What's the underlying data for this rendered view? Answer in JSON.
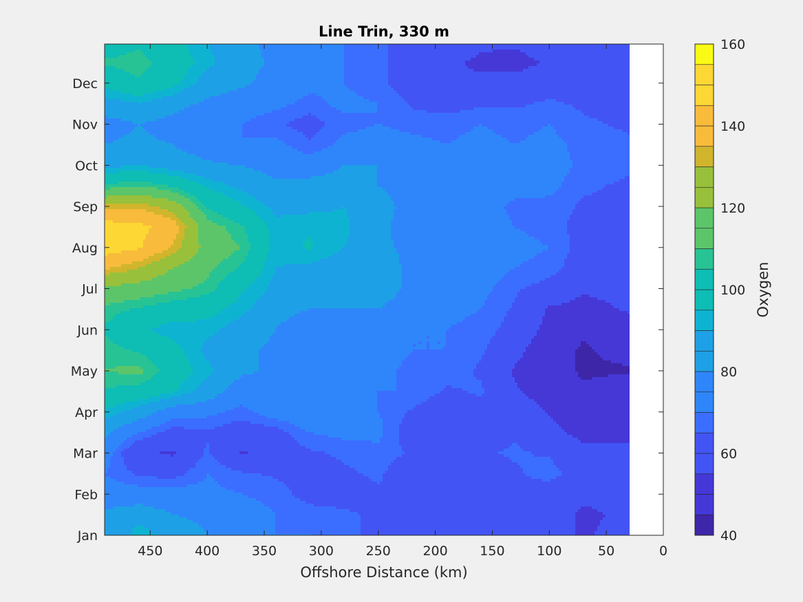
{
  "chart_data": {
    "type": "heatmap",
    "title": "Line Trin, 330 m",
    "xlabel": "Offshore Distance (km)",
    "ylabel": "",
    "xlim": [
      490,
      0
    ],
    "x_reversed": true,
    "x_ticks": [
      450,
      400,
      350,
      300,
      250,
      200,
      150,
      100,
      50,
      0
    ],
    "y_ticks": [
      "Jan",
      "Feb",
      "Mar",
      "Apr",
      "May",
      "Jun",
      "Jul",
      "Aug",
      "Sep",
      "Oct",
      "Nov",
      "Dec"
    ],
    "y_tick_values": [
      1,
      2,
      3,
      4,
      5,
      6,
      7,
      8,
      9,
      10,
      11,
      12
    ],
    "ylim": [
      1,
      12.95
    ],
    "x_data_max": 30,
    "colorbar": {
      "label": "Oxygen",
      "range": [
        40,
        160
      ],
      "ticks": [
        40,
        60,
        80,
        100,
        120,
        140,
        160
      ],
      "levels": [
        40,
        45,
        50,
        55,
        60,
        65,
        70,
        75,
        80,
        85,
        90,
        95,
        100,
        105,
        110,
        115,
        120,
        125,
        130,
        135,
        140,
        145,
        150,
        155,
        160
      ],
      "colormap": [
        "#3e26a8",
        "#4538d7",
        "#4354f5",
        "#3b6eff",
        "#2f86fa",
        "#1ea0e6",
        "#0fb3d2",
        "#0ebdb4",
        "#28c394",
        "#5cc56a",
        "#98c03b",
        "#d0b52d",
        "#f8bb3b",
        "#fdd734",
        "#f9fb15"
      ]
    },
    "x_grid": [
      490,
      460,
      430,
      400,
      370,
      340,
      310,
      280,
      250,
      220,
      190,
      160,
      130,
      100,
      70,
      30
    ],
    "y_grid": [
      1,
      1.5,
      2,
      2.5,
      3,
      3.5,
      4,
      4.5,
      5,
      5.5,
      6,
      6.5,
      7,
      7.5,
      8,
      8.5,
      9,
      9.5,
      10,
      10.5,
      11,
      11.5,
      12,
      12.5,
      12.95
    ],
    "z": [
      [
        80,
        94,
        86,
        80,
        76,
        70,
        70,
        66,
        64,
        64,
        64,
        62,
        60,
        58,
        54,
        58
      ],
      [
        82,
        86,
        80,
        78,
        74,
        70,
        68,
        66,
        64,
        62,
        62,
        60,
        58,
        58,
        54,
        56
      ],
      [
        74,
        74,
        74,
        72,
        70,
        68,
        62,
        62,
        64,
        64,
        62,
        58,
        62,
        60,
        56,
        58
      ],
      [
        70,
        64,
        62,
        70,
        66,
        64,
        62,
        64,
        66,
        60,
        58,
        60,
        64,
        68,
        60,
        58
      ],
      [
        74,
        56,
        54,
        66,
        54,
        60,
        64,
        66,
        68,
        64,
        60,
        64,
        66,
        64,
        58,
        56
      ],
      [
        82,
        70,
        62,
        64,
        60,
        62,
        70,
        72,
        72,
        60,
        56,
        60,
        64,
        58,
        52,
        54
      ],
      [
        94,
        86,
        74,
        72,
        68,
        74,
        78,
        74,
        70,
        64,
        58,
        62,
        62,
        54,
        48,
        50
      ],
      [
        104,
        102,
        96,
        86,
        74,
        78,
        80,
        72,
        70,
        70,
        64,
        66,
        56,
        50,
        46,
        50
      ],
      [
        110,
        112,
        100,
        92,
        82,
        78,
        76,
        72,
        72,
        68,
        68,
        64,
        54,
        48,
        44,
        44
      ],
      [
        108,
        104,
        98,
        88,
        82,
        78,
        74,
        76,
        74,
        70,
        70,
        66,
        58,
        48,
        44,
        48
      ],
      [
        104,
        96,
        92,
        92,
        86,
        80,
        72,
        76,
        76,
        70,
        70,
        68,
        62,
        52,
        46,
        50
      ],
      [
        108,
        104,
        100,
        98,
        92,
        84,
        80,
        80,
        80,
        76,
        72,
        70,
        64,
        54,
        52,
        56
      ],
      [
        118,
        116,
        112,
        108,
        96,
        88,
        84,
        82,
        84,
        78,
        74,
        72,
        66,
        62,
        56,
        58
      ],
      [
        136,
        130,
        120,
        112,
        104,
        90,
        88,
        86,
        84,
        78,
        76,
        74,
        70,
        68,
        60,
        60
      ],
      [
        150,
        146,
        134,
        116,
        110,
        92,
        96,
        90,
        82,
        78,
        76,
        72,
        72,
        70,
        62,
        60
      ],
      [
        150,
        148,
        140,
        114,
        106,
        92,
        94,
        92,
        82,
        76,
        72,
        74,
        70,
        68,
        62,
        64
      ],
      [
        132,
        134,
        126,
        104,
        96,
        88,
        88,
        90,
        84,
        76,
        72,
        74,
        68,
        68,
        64,
        64
      ],
      [
        106,
        110,
        104,
        94,
        88,
        82,
        84,
        84,
        80,
        76,
        74,
        76,
        74,
        72,
        66,
        64
      ],
      [
        88,
        90,
        86,
        82,
        80,
        76,
        74,
        80,
        80,
        76,
        72,
        76,
        74,
        74,
        68,
        66
      ],
      [
        80,
        82,
        80,
        74,
        70,
        72,
        66,
        72,
        74,
        72,
        70,
        72,
        70,
        72,
        68,
        66
      ],
      [
        76,
        80,
        76,
        70,
        70,
        66,
        62,
        68,
        70,
        68,
        68,
        70,
        68,
        70,
        66,
        64
      ],
      [
        86,
        90,
        84,
        78,
        74,
        72,
        68,
        72,
        70,
        64,
        62,
        64,
        64,
        66,
        64,
        62
      ],
      [
        98,
        104,
        98,
        86,
        82,
        76,
        72,
        70,
        66,
        62,
        56,
        56,
        58,
        62,
        62,
        62
      ],
      [
        106,
        108,
        100,
        92,
        84,
        78,
        74,
        70,
        66,
        62,
        56,
        54,
        52,
        56,
        60,
        62
      ],
      [
        100,
        104,
        98,
        90,
        84,
        76,
        74,
        70,
        66,
        62,
        58,
        56,
        56,
        60,
        62,
        64
      ]
    ]
  }
}
